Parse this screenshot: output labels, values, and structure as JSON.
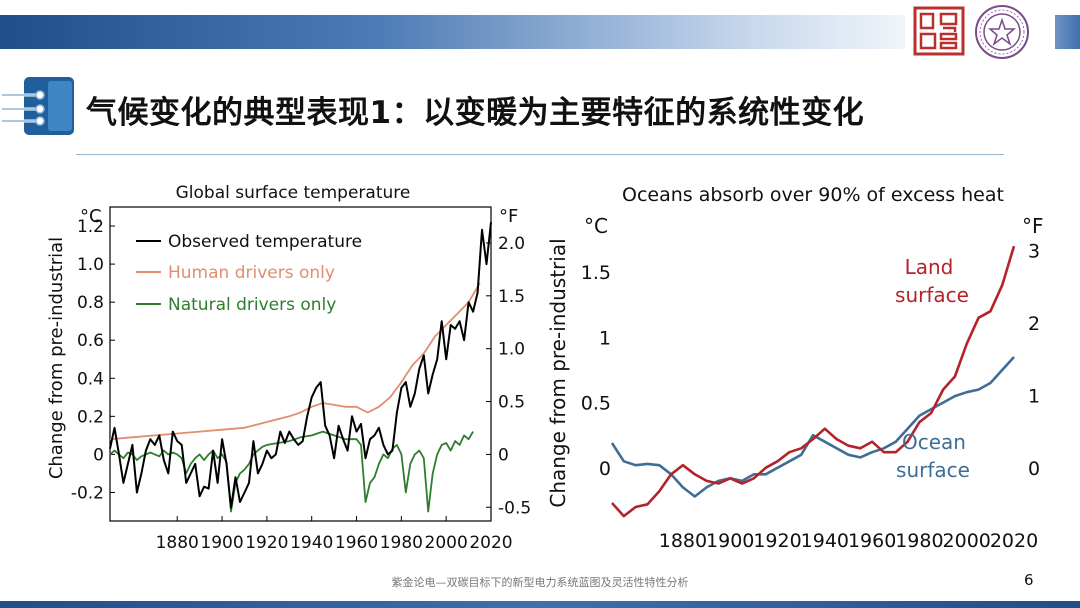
{
  "slide": {
    "title": "气候变化的典型表现1：以变暖为主要特征的系统性变化",
    "footer": "紫金论电—双碳目标下的新型电力系统蓝图及灵活性特性分析",
    "page_number": "6",
    "colors": {
      "header_dark": "#1f4e8a",
      "header_light": "#c9d9ee",
      "seal_red": "#b8312f",
      "emblem_purple": "#7a4a8a",
      "rule": "#9bb7cf"
    },
    "icons": [
      "university-seal-icon",
      "university-emblem-icon",
      "title-arrows-icon"
    ]
  },
  "chart_data": [
    {
      "type": "line",
      "title": "Global surface temperature",
      "ylabel": "Change from pre-industrial",
      "y_unit_left": "°C",
      "y_unit_right": "°F",
      "xlim": [
        1850,
        2020
      ],
      "ylim": [
        -0.35,
        1.3
      ],
      "x_ticks": [
        "1880",
        "1900",
        "1920",
        "1940",
        "1960",
        "1980",
        "2000",
        "2020"
      ],
      "y_ticks_left": [
        "-0.2",
        "0",
        "0.2",
        "0.4",
        "0.6",
        "0.8",
        "1.0",
        "1.2"
      ],
      "y_ticks_right": [
        "-0.5",
        "0",
        "0.5",
        "1.0",
        "1.5",
        "2.0"
      ],
      "legend_position": "top-left",
      "series": [
        {
          "name": "Observed temperature",
          "color": "#000000",
          "x": [
            1850,
            1852,
            1854,
            1856,
            1858,
            1860,
            1862,
            1864,
            1866,
            1868,
            1870,
            1872,
            1874,
            1876,
            1878,
            1880,
            1882,
            1884,
            1886,
            1888,
            1890,
            1892,
            1894,
            1896,
            1898,
            1900,
            1902,
            1904,
            1906,
            1908,
            1910,
            1912,
            1914,
            1916,
            1918,
            1920,
            1922,
            1924,
            1926,
            1928,
            1930,
            1932,
            1934,
            1936,
            1938,
            1940,
            1942,
            1944,
            1946,
            1948,
            1950,
            1952,
            1954,
            1956,
            1958,
            1960,
            1962,
            1964,
            1966,
            1968,
            1970,
            1972,
            1974,
            1976,
            1978,
            1980,
            1982,
            1984,
            1986,
            1988,
            1990,
            1992,
            1994,
            1996,
            1998,
            2000,
            2002,
            2004,
            2006,
            2008,
            2010,
            2012,
            2014,
            2016,
            2018,
            2020
          ],
          "y": [
            0.03,
            0.14,
            0.0,
            -0.15,
            -0.05,
            0.05,
            -0.2,
            -0.1,
            0.02,
            0.08,
            0.05,
            0.1,
            -0.03,
            -0.1,
            0.12,
            0.07,
            0.05,
            -0.15,
            -0.1,
            -0.05,
            -0.22,
            -0.17,
            -0.18,
            0.02,
            -0.15,
            0.08,
            -0.05,
            -0.28,
            -0.12,
            -0.25,
            -0.2,
            -0.15,
            0.07,
            -0.1,
            -0.05,
            0.02,
            -0.02,
            0.0,
            0.12,
            0.06,
            0.12,
            0.08,
            0.05,
            0.07,
            0.2,
            0.3,
            0.35,
            0.38,
            0.15,
            0.1,
            -0.02,
            0.15,
            0.08,
            0.02,
            0.2,
            0.12,
            0.16,
            -0.02,
            0.08,
            0.1,
            0.14,
            0.05,
            0.0,
            0.02,
            0.22,
            0.35,
            0.38,
            0.25,
            0.32,
            0.45,
            0.52,
            0.32,
            0.42,
            0.5,
            0.7,
            0.5,
            0.68,
            0.66,
            0.7,
            0.6,
            0.8,
            0.75,
            0.85,
            1.18,
            1.0,
            1.22
          ]
        },
        {
          "name": "Human drivers only",
          "color": "#e28d6f",
          "x": [
            1850,
            1860,
            1870,
            1880,
            1890,
            1900,
            1910,
            1920,
            1930,
            1935,
            1940,
            1945,
            1950,
            1955,
            1960,
            1965,
            1970,
            1975,
            1980,
            1985,
            1990,
            1995,
            2000,
            2005,
            2010,
            2015
          ],
          "y": [
            0.08,
            0.09,
            0.1,
            0.11,
            0.12,
            0.13,
            0.14,
            0.17,
            0.2,
            0.22,
            0.25,
            0.27,
            0.26,
            0.25,
            0.25,
            0.22,
            0.25,
            0.3,
            0.38,
            0.47,
            0.53,
            0.62,
            0.68,
            0.74,
            0.8,
            0.9
          ]
        },
        {
          "name": "Natural drivers only",
          "color": "#2e7d2e",
          "x": [
            1850,
            1852,
            1854,
            1856,
            1858,
            1860,
            1862,
            1864,
            1866,
            1868,
            1870,
            1872,
            1874,
            1876,
            1878,
            1880,
            1882,
            1884,
            1886,
            1888,
            1890,
            1892,
            1894,
            1896,
            1898,
            1900,
            1902,
            1904,
            1906,
            1908,
            1910,
            1912,
            1914,
            1916,
            1918,
            1920,
            1925,
            1930,
            1935,
            1940,
            1945,
            1950,
            1955,
            1960,
            1962,
            1964,
            1966,
            1968,
            1970,
            1972,
            1974,
            1976,
            1978,
            1980,
            1982,
            1984,
            1986,
            1988,
            1990,
            1992,
            1994,
            1996,
            1998,
            2000,
            2002,
            2004,
            2006,
            2008,
            2010,
            2012
          ],
          "y": [
            0.0,
            0.02,
            0.0,
            -0.02,
            0.01,
            0.0,
            -0.03,
            -0.01,
            0.0,
            0.01,
            0.0,
            -0.01,
            0.02,
            0.0,
            0.01,
            0.0,
            -0.02,
            -0.1,
            -0.05,
            -0.02,
            0.0,
            -0.03,
            0.0,
            0.02,
            -0.02,
            0.0,
            -0.04,
            -0.3,
            -0.15,
            -0.1,
            -0.08,
            -0.05,
            0.0,
            0.02,
            0.04,
            0.05,
            0.06,
            0.07,
            0.09,
            0.1,
            0.12,
            0.1,
            0.08,
            0.08,
            0.05,
            -0.25,
            -0.15,
            -0.12,
            -0.05,
            0.0,
            -0.02,
            0.03,
            0.05,
            0.0,
            -0.2,
            -0.05,
            0.0,
            0.02,
            -0.02,
            -0.3,
            -0.1,
            0.0,
            0.05,
            0.06,
            0.02,
            0.07,
            0.05,
            0.1,
            0.08,
            0.12
          ]
        }
      ]
    },
    {
      "type": "line",
      "title": "Oceans absorb over 90% of excess heat",
      "ylabel": "Change from pre-industrial",
      "y_unit_left": "°C",
      "y_unit_right": "°F",
      "xlim": [
        1850,
        2020
      ],
      "ylim": [
        -0.4,
        1.9
      ],
      "x_ticks": [
        "1880",
        "1900",
        "1920",
        "1940",
        "1960",
        "1980",
        "2000",
        "2020"
      ],
      "y_ticks_left": [
        "0",
        "0.5",
        "1",
        "1.5"
      ],
      "y_ticks_right": [
        "0",
        "1",
        "2",
        "3"
      ],
      "series": [
        {
          "name": "Land surface",
          "color": "#b3242a",
          "x": [
            1850,
            1855,
            1860,
            1865,
            1870,
            1875,
            1880,
            1885,
            1890,
            1895,
            1900,
            1905,
            1910,
            1915,
            1920,
            1925,
            1930,
            1935,
            1940,
            1945,
            1950,
            1955,
            1960,
            1965,
            1970,
            1975,
            1980,
            1985,
            1990,
            1995,
            2000,
            2005,
            2010,
            2015,
            2020
          ],
          "y": [
            -0.27,
            -0.37,
            -0.3,
            -0.28,
            -0.18,
            -0.05,
            0.02,
            -0.05,
            -0.1,
            -0.12,
            -0.08,
            -0.12,
            -0.08,
            0.0,
            0.05,
            0.12,
            0.15,
            0.22,
            0.3,
            0.22,
            0.17,
            0.15,
            0.2,
            0.12,
            0.12,
            0.2,
            0.35,
            0.42,
            0.6,
            0.7,
            0.95,
            1.15,
            1.2,
            1.4,
            1.7
          ]
        },
        {
          "name": "Ocean surface",
          "color": "#3e6e96",
          "x": [
            1850,
            1855,
            1860,
            1865,
            1870,
            1875,
            1880,
            1885,
            1890,
            1895,
            1900,
            1905,
            1910,
            1915,
            1920,
            1925,
            1930,
            1935,
            1940,
            1945,
            1950,
            1955,
            1960,
            1965,
            1970,
            1975,
            1980,
            1985,
            1990,
            1995,
            2000,
            2005,
            2010,
            2015,
            2020
          ],
          "y": [
            0.19,
            0.05,
            0.02,
            0.03,
            0.02,
            -0.05,
            -0.15,
            -0.22,
            -0.15,
            -0.1,
            -0.08,
            -0.1,
            -0.05,
            -0.05,
            0.0,
            0.05,
            0.1,
            0.25,
            0.2,
            0.15,
            0.1,
            0.08,
            0.12,
            0.15,
            0.2,
            0.3,
            0.4,
            0.45,
            0.5,
            0.55,
            0.58,
            0.6,
            0.65,
            0.75,
            0.85
          ]
        }
      ]
    }
  ]
}
